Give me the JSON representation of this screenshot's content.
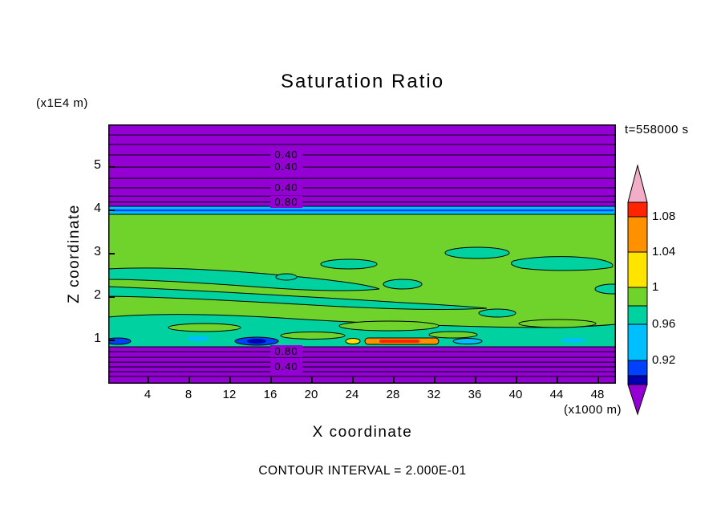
{
  "title": "Saturation Ratio",
  "time_label": "t=558000 s",
  "footer": "CONTOUR INTERVAL = 2.000E-01",
  "x_axis": {
    "label": "X coordinate",
    "units": "(x1000 m)"
  },
  "y_axis": {
    "label": "Z coordinate",
    "units": "(x1E4 m)"
  },
  "palette": {
    "purple": "#9400D3",
    "green": "#6FD32B",
    "turquoise": "#00D1A0",
    "cyan": "#00BFFF",
    "blue": "#0040FF",
    "navy": "#0000B0",
    "yellow": "#FFE400",
    "orange": "#FF9000",
    "red": "#FF2400",
    "pink": "#F2AEC8",
    "frame": "#000000",
    "background": "#FFFFFF"
  },
  "colorbar": {
    "top_arrow_color_name": "pink",
    "bottom_arrow_color_name": "purple",
    "segments": [
      {
        "color_name": "red",
        "label_below": "1.08"
      },
      {
        "color_name": "orange",
        "label_below": "1.04"
      },
      {
        "color_name": "yellow",
        "label_below": "1"
      },
      {
        "color_name": "green",
        "label_below": null
      },
      {
        "color_name": "turquoise",
        "label_below": "0.96"
      },
      {
        "color_name": "cyan",
        "label_below": "0.92"
      },
      {
        "color_name": "blue",
        "label_below": null
      },
      {
        "color_name": "navy",
        "label_below": null
      }
    ]
  },
  "chart_data": {
    "type": "heatmap",
    "plot_kind": "filled-contour-vertical-cross-section",
    "title": "Saturation Ratio",
    "xlabel": "X coordinate",
    "ylabel": "Z coordinate",
    "x_units": "(x1000 m)",
    "y_units": "(x1E4 m)",
    "time": "t=558000 s",
    "contour_interval": 0.2,
    "contour_interval_label": "CONTOUR INTERVAL = 2.000E-01",
    "x_range": [
      0,
      49.6
    ],
    "z_range": [
      0,
      5.97
    ],
    "x_ticks": [
      4,
      8,
      12,
      16,
      20,
      24,
      28,
      32,
      36,
      40,
      44,
      48
    ],
    "z_ticks": [
      1,
      2,
      3,
      4,
      5
    ],
    "colorbar_boundaries": [
      1.08,
      1.04,
      1,
      0.96,
      0.92
    ],
    "line_contour_z_top": [
      5.72,
      5.5,
      5.26,
      4.98,
      4.72,
      4.5,
      4.31,
      4.17
    ],
    "line_contour_z_bottom": [
      0.72,
      0.59,
      0.48,
      0.37,
      0.26,
      0.15
    ],
    "labeled_contours_top": [
      {
        "z": 5.26,
        "value": "0.40"
      },
      {
        "z": 4.98,
        "value": "0.40"
      },
      {
        "z": 4.5,
        "value": "0.40"
      },
      {
        "z": 4.17,
        "value": "0.80"
      }
    ],
    "labeled_contours_bottom": [
      {
        "z": 0.72,
        "value": "0.80"
      },
      {
        "z": 0.37,
        "value": "0.40"
      }
    ],
    "bands": [
      {
        "region": "z > 4.1",
        "value": "ratio < 0.4, dry air aloft",
        "color_name": "purple"
      },
      {
        "region": "z ~ 4.0 stripe",
        "value": "ratio ~ 0.92-0.96 with thin < 0.92 line",
        "color_name": "cyan"
      },
      {
        "region": "0.85 < z < 4.0",
        "value": "ratio ~ 1.0",
        "color_name": "green"
      },
      {
        "region": "patches, 0.9<z<2.7",
        "value": "ratio ~ 0.96-1.0",
        "color_name": "turquoise"
      },
      {
        "region": "z ~ 0.9, x ~ 25-31",
        "value": "local maxima > 1.04",
        "color_name": "orange"
      },
      {
        "region": "z ~ 0.9, x ~ 13-17",
        "value": "local minima < 0.92",
        "color_name": "blue"
      },
      {
        "region": "z < 0.85",
        "value": "ratio < 0.8 decreasing to < 0.4",
        "color_name": "purple"
      }
    ]
  }
}
